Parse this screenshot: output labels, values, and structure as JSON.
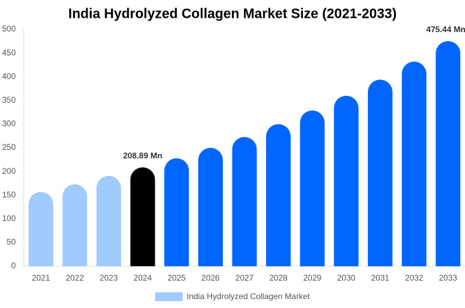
{
  "chart_data": {
    "type": "bar",
    "title": "India Hydrolyzed Collagen Market Size (2021-2033)",
    "categories": [
      "2021",
      "2022",
      "2023",
      "2024",
      "2025",
      "2026",
      "2027",
      "2028",
      "2029",
      "2030",
      "2031",
      "2032",
      "2033"
    ],
    "series": [
      {
        "name": "India Hydrolyzed Collagen Market",
        "color": "#a0cbfd",
        "values": [
          157,
          173,
          191,
          208.89,
          228,
          250,
          273,
          300,
          329,
          360,
          394,
          432,
          475.44
        ],
        "colors": [
          "#a0cbfd",
          "#a0cbfd",
          "#a0cbfd",
          "#000000",
          "#0066ff",
          "#0066ff",
          "#0066ff",
          "#0066ff",
          "#0066ff",
          "#0066ff",
          "#0066ff",
          "#0066ff",
          "#0066ff"
        ],
        "value_labels": [
          null,
          null,
          null,
          "208.89 Mn",
          null,
          null,
          null,
          null,
          null,
          null,
          null,
          null,
          "475.44 Mn"
        ]
      }
    ],
    "ylim": [
      0,
      500
    ],
    "yticks": [
      0,
      50,
      100,
      150,
      200,
      250,
      300,
      350,
      400,
      450,
      500
    ],
    "grid": false,
    "legend": "bottom"
  }
}
